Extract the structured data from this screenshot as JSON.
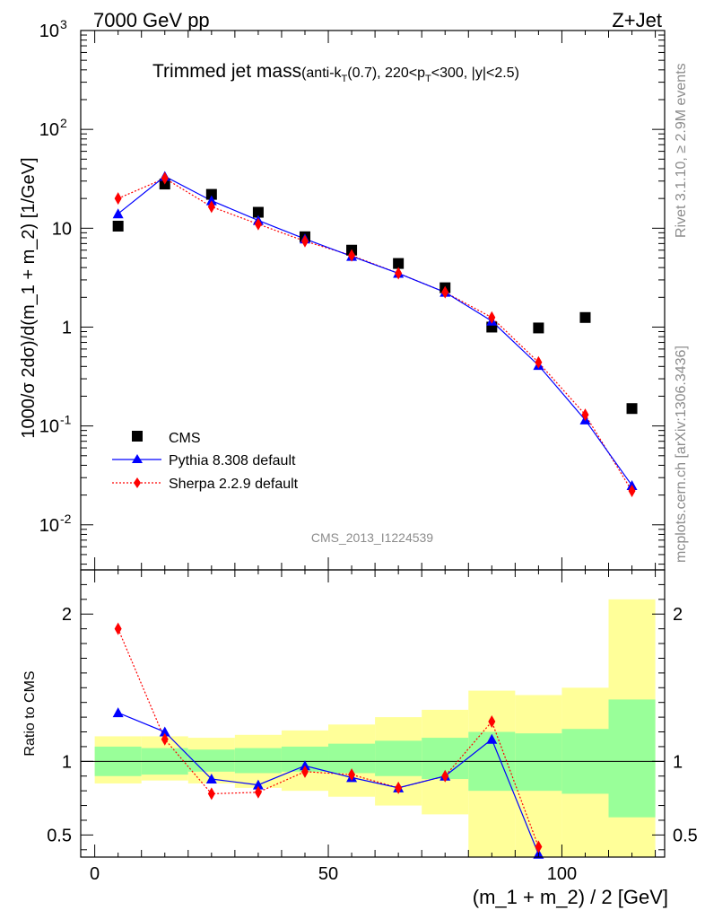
{
  "header": {
    "left": "7000 GeV pp",
    "right": "Z+Jet"
  },
  "side_labels": {
    "rivet": "Rivet 3.1.10, ≥ 2.9M events",
    "mcplots": "mcplots.cern.ch [arXiv:1306.3436]"
  },
  "watermark": "CMS_2013_I1224539",
  "title": {
    "main": "Trimmed jet mass",
    "sub": "(anti-k",
    "sub_t1": "T",
    "sub_mid": "(0.7), 220<p",
    "sub_t2": "T",
    "sub_end": "<300, |y|<2.5)"
  },
  "colors": {
    "cms": "#000000",
    "pythia": "#0000ff",
    "sherpa": "#ff0000",
    "band_inner": "#99ff99",
    "band_outer": "#ffff99"
  },
  "chart_data": [
    {
      "type": "scatter",
      "panel": "main",
      "ylabel": "1000/σ 2dσ)/d(m_1 + m_2) [1/GeV]",
      "yscale": "log",
      "xlim": [
        -3,
        122
      ],
      "ylim": [
        0.0035,
        1000
      ],
      "y_ticks": [
        {
          "v": 0.01,
          "base": "10",
          "exp": "-2"
        },
        {
          "v": 0.1,
          "base": "10",
          "exp": "-1"
        },
        {
          "v": 1,
          "base": "1",
          "exp": ""
        },
        {
          "v": 10,
          "base": "10",
          "exp": ""
        },
        {
          "v": 100,
          "base": "10",
          "exp": "2"
        },
        {
          "v": 1000,
          "base": "10",
          "exp": "3"
        }
      ],
      "x": [
        5,
        15,
        25,
        35,
        45,
        55,
        65,
        75,
        85,
        95,
        105,
        115
      ],
      "series": [
        {
          "name": "CMS",
          "marker": "square",
          "values": [
            10.5,
            28.0,
            22.0,
            14.5,
            8.2,
            6.0,
            4.4,
            2.5,
            1.0,
            0.98,
            1.25,
            0.15
          ]
        },
        {
          "name": "Pythia 8.308 default",
          "marker": "triangle",
          "line": "solid",
          "values": [
            14.0,
            33.5,
            19.0,
            12.0,
            7.8,
            5.2,
            3.5,
            2.25,
            1.15,
            0.41,
            0.115,
            0.025
          ]
        },
        {
          "name": "Sherpa 2.2.9 default",
          "marker": "diamond",
          "line": "dotted",
          "values": [
            20.0,
            32.0,
            16.5,
            11.0,
            7.4,
            5.3,
            3.5,
            2.25,
            1.25,
            0.44,
            0.13,
            0.022
          ]
        }
      ],
      "legend_position": "bottom-left"
    },
    {
      "type": "line",
      "panel": "ratio",
      "ylabel": "Ratio to CMS",
      "xlabel": "(m_1 + m_2) / 2 [GeV]",
      "xlim": [
        -3,
        122
      ],
      "ylim": [
        0.35,
        2.3
      ],
      "x_ticks": [
        0,
        50,
        100
      ],
      "y_ticks": [
        0.5,
        1,
        2
      ],
      "x": [
        5,
        15,
        25,
        35,
        45,
        55,
        65,
        75,
        85,
        95
      ],
      "series": [
        {
          "name": "Pythia 8.308 default",
          "values": [
            1.33,
            1.2,
            0.88,
            0.84,
            0.97,
            0.89,
            0.82,
            0.9,
            1.15,
            0.37
          ]
        },
        {
          "name": "Sherpa 2.2.9 default",
          "values": [
            1.9,
            1.15,
            0.78,
            0.79,
            0.93,
            0.91,
            0.82,
            0.9,
            1.27,
            0.42
          ]
        }
      ],
      "bands": {
        "edges": [
          0,
          10,
          20,
          30,
          40,
          50,
          60,
          70,
          80,
          90,
          100,
          110,
          120
        ],
        "inner_lo": [
          0.9,
          0.91,
          0.93,
          0.92,
          0.93,
          0.92,
          0.9,
          0.88,
          0.8,
          0.8,
          0.78,
          0.62
        ],
        "inner_hi": [
          1.1,
          1.09,
          1.08,
          1.09,
          1.1,
          1.12,
          1.14,
          1.16,
          1.2,
          1.19,
          1.22,
          1.42
        ],
        "outer_lo": [
          0.85,
          0.87,
          0.85,
          0.82,
          0.8,
          0.76,
          0.7,
          0.64,
          0.35,
          0.35,
          0.35,
          0.35
        ],
        "outer_hi": [
          1.17,
          1.17,
          1.16,
          1.18,
          1.21,
          1.25,
          1.3,
          1.35,
          1.48,
          1.45,
          1.5,
          2.1
        ]
      }
    }
  ]
}
